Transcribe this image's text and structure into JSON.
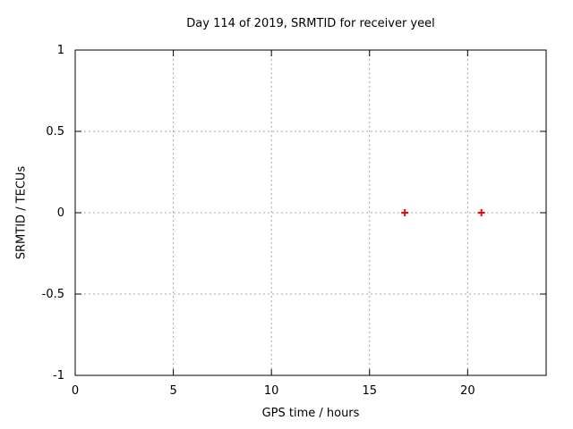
{
  "chart_data": {
    "type": "scatter",
    "title": "Day 114 of 2019, SRMTID for receiver yeel",
    "xlabel": "GPS time / hours",
    "ylabel": "SRMTID / TECUs",
    "xlim": [
      0,
      24
    ],
    "ylim": [
      -1,
      1
    ],
    "xticks": [
      0,
      5,
      10,
      15,
      20
    ],
    "yticks": [
      -1,
      -0.5,
      0,
      0.5,
      1
    ],
    "grid": true,
    "legend": "none",
    "series": [
      {
        "name": "SRMTID",
        "marker": "plus",
        "color": "#ff0000",
        "points": [
          {
            "x": 16.8,
            "y": 0
          },
          {
            "x": 20.7,
            "y": 0
          }
        ]
      }
    ],
    "colors": {
      "background": "#ffffff",
      "axis": "#000000",
      "grid": "#a8a8a8",
      "text": "#000000"
    }
  }
}
